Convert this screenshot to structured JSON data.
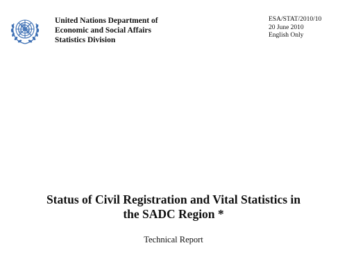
{
  "header": {
    "organization_lines": [
      "United Nations Department of",
      "Economic and Social Affairs",
      "Statistics Division"
    ],
    "document_symbol": "ESA/STAT/2010/10",
    "date": "20 June 2010",
    "language_note": "English Only"
  },
  "document": {
    "title_lines": [
      "Status of Civil Registration and Vital Statistics in",
      "the SADC Region *"
    ],
    "subtitle": "Technical Report"
  },
  "colors": {
    "logo": "#3c6fb4",
    "text": "#111111"
  },
  "icons": {
    "logo": "un-emblem-icon"
  }
}
